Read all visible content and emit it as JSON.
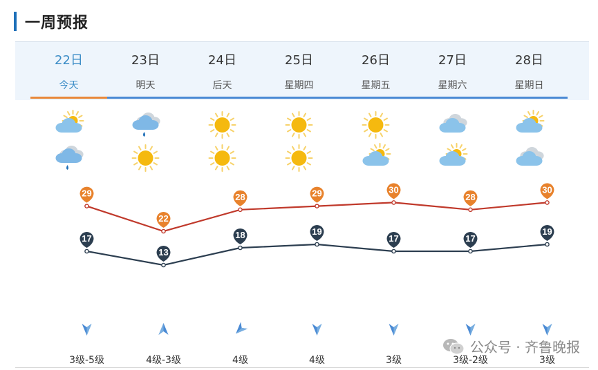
{
  "page": {
    "title": "一周预报"
  },
  "days": [
    {
      "date": "22日",
      "weekday": "今天",
      "day_icon": "partly-cloudy-icon",
      "night_icon": "cloudy-rain-icon",
      "high": "29",
      "low": "17",
      "wind_dir": "north",
      "wind": "3级-5级",
      "active": true
    },
    {
      "date": "23日",
      "weekday": "明天",
      "day_icon": "cloudy-rain-icon",
      "night_icon": "sunny-icon",
      "high": "22",
      "low": "13",
      "wind_dir": "south",
      "wind": "4级-3级",
      "active": false
    },
    {
      "date": "24日",
      "weekday": "后天",
      "day_icon": "sunny-icon",
      "night_icon": "sunny-icon",
      "high": "28",
      "low": "18",
      "wind_dir": "southwest",
      "wind": "4级",
      "active": false
    },
    {
      "date": "25日",
      "weekday": "星期四",
      "day_icon": "sunny-icon",
      "night_icon": "sunny-icon",
      "high": "29",
      "low": "19",
      "wind_dir": "north",
      "wind": "4级",
      "active": false
    },
    {
      "date": "26日",
      "weekday": "星期五",
      "day_icon": "sunny-icon",
      "night_icon": "partly-cloudy-icon",
      "high": "30",
      "low": "17",
      "wind_dir": "north",
      "wind": "3级",
      "active": false
    },
    {
      "date": "27日",
      "weekday": "星期六",
      "day_icon": "cloudy-icon",
      "night_icon": "partly-cloudy-icon",
      "high": "28",
      "low": "17",
      "wind_dir": "north",
      "wind": "3级-2级",
      "active": false
    },
    {
      "date": "28日",
      "weekday": "星期日",
      "day_icon": "partly-cloudy-icon",
      "night_icon": "cloudy-icon",
      "high": "30",
      "low": "19",
      "wind_dir": "north",
      "wind": "3级",
      "active": false
    }
  ],
  "chart_data": {
    "type": "line",
    "categories": [
      "22日",
      "23日",
      "24日",
      "25日",
      "26日",
      "27日",
      "28日"
    ],
    "series": [
      {
        "values": [
          29,
          22,
          28,
          29,
          30,
          28,
          30
        ],
        "color": "#c0392b",
        "marker_color": "#e8822c"
      },
      {
        "values": [
          17,
          13,
          18,
          19,
          17,
          17,
          19
        ],
        "color": "#2c3e50",
        "marker_color": "#2c3e50"
      }
    ]
  },
  "watermark": {
    "text": "公众号 · 齐鲁晚报"
  },
  "colors": {
    "accent": "#1d6fb8",
    "active_tab": "#e8883a",
    "tab_underline": "#4a8ad4",
    "header_bg": "#eef5fc"
  }
}
